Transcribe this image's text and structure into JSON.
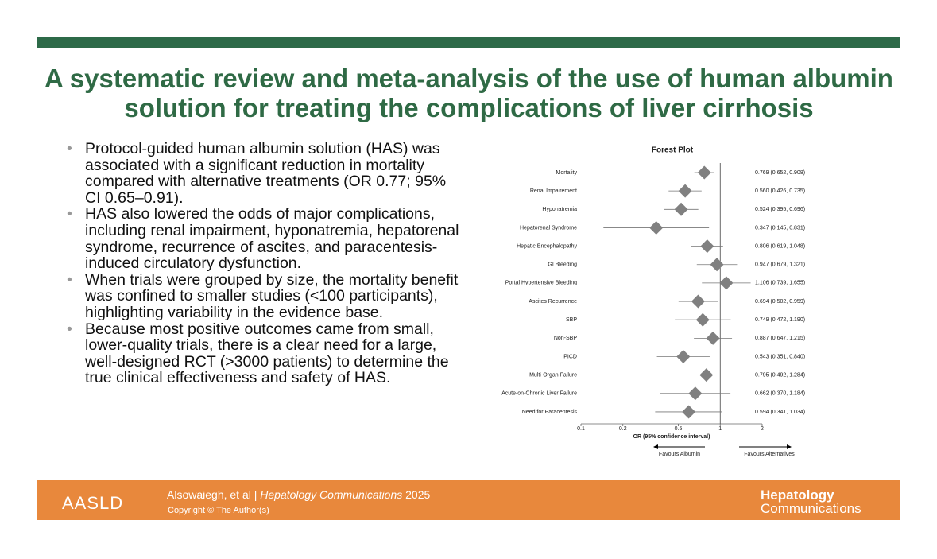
{
  "header": {
    "title": "A systematic review and meta-analysis of the use of human albumin solution for treating the complications of liver cirrhosis"
  },
  "bullets": [
    "Protocol-guided human albumin solution (HAS) was associated with a significant reduction in mortality compared with alternative treatments (OR 0.77; 95% CI 0.65–0.91).",
    "HAS also lowered the odds of major complications, including renal impairment, hyponatremia, hepatorenal syndrome, recurrence of ascites, and paracentesis-induced circulatory dysfunction.",
    "When trials were grouped by size, the mortality benefit was confined to smaller studies (<100 participants), highlighting variability in the evidence base.",
    "Because most positive outcomes came from small, lower-quality trials, there is a clear need for a large, well-designed RCT (>3000 patients) to determine the true clinical effectiveness and safety of HAS."
  ],
  "chart_data": {
    "type": "forest",
    "title": "Forest Plot",
    "categories": [
      "Mortality",
      "Renal Impairement",
      "Hyponatremia",
      "Hepatorenal Syndrome",
      "Hepatic Encephalopathy",
      "GI Bleeding",
      "Portal Hypertensive Bleeding",
      "Ascites Recurrence",
      "SBP",
      "Non-SBP",
      "PICD",
      "Multi-Organ Failure",
      "Acute-on-Chronic Liver Failure",
      "Need for Paracentesis"
    ],
    "values": [
      0.769,
      0.56,
      0.524,
      0.347,
      0.806,
      0.947,
      1.106,
      0.694,
      0.749,
      0.887,
      0.543,
      0.795,
      0.662,
      0.594
    ],
    "lower": [
      0.652,
      0.426,
      0.395,
      0.145,
      0.619,
      0.679,
      0.739,
      0.502,
      0.472,
      0.647,
      0.351,
      0.492,
      0.37,
      0.341
    ],
    "upper": [
      0.908,
      0.735,
      0.696,
      0.831,
      1.048,
      1.321,
      1.655,
      0.959,
      1.19,
      1.215,
      0.84,
      1.284,
      1.184,
      1.034
    ],
    "value_labels": [
      "0.769 (0.652, 0.908)",
      "0.560 (0.426, 0.735)",
      "0.524 (0.395, 0.696)",
      "0.347 (0.145, 0.831)",
      "0.806 (0.619, 1.048)",
      "0.947 (0.679, 1.321)",
      "1.106 (0.739, 1.655)",
      "0.694 (0.502, 0.959)",
      "0.749 (0.472, 1.190)",
      "0.887 (0.647, 1.215)",
      "0.543 (0.351, 0.840)",
      "0.795 (0.492, 1.284)",
      "0.662 (0.370, 1.184)",
      "0.594 (0.341, 1.034)"
    ],
    "xlim": [
      0.1,
      2
    ],
    "xticks": [
      0.1,
      0.2,
      0.5,
      1,
      2
    ],
    "log_scale": true,
    "reference": 1,
    "xlabel": "OR (95% confidence interval)",
    "annotations": [
      "Favours Albumin",
      "Favours Alternatives"
    ],
    "color": "#808080"
  },
  "footer": {
    "logo": "AASLD",
    "authors": "Alsowaiegh, et al",
    "separator": "|",
    "journal": "Hepatology Communications",
    "year": "2025",
    "copyright": "Copyright © The Author(s)",
    "brand_top": "Hepatology",
    "brand_bottom": "Communications"
  }
}
